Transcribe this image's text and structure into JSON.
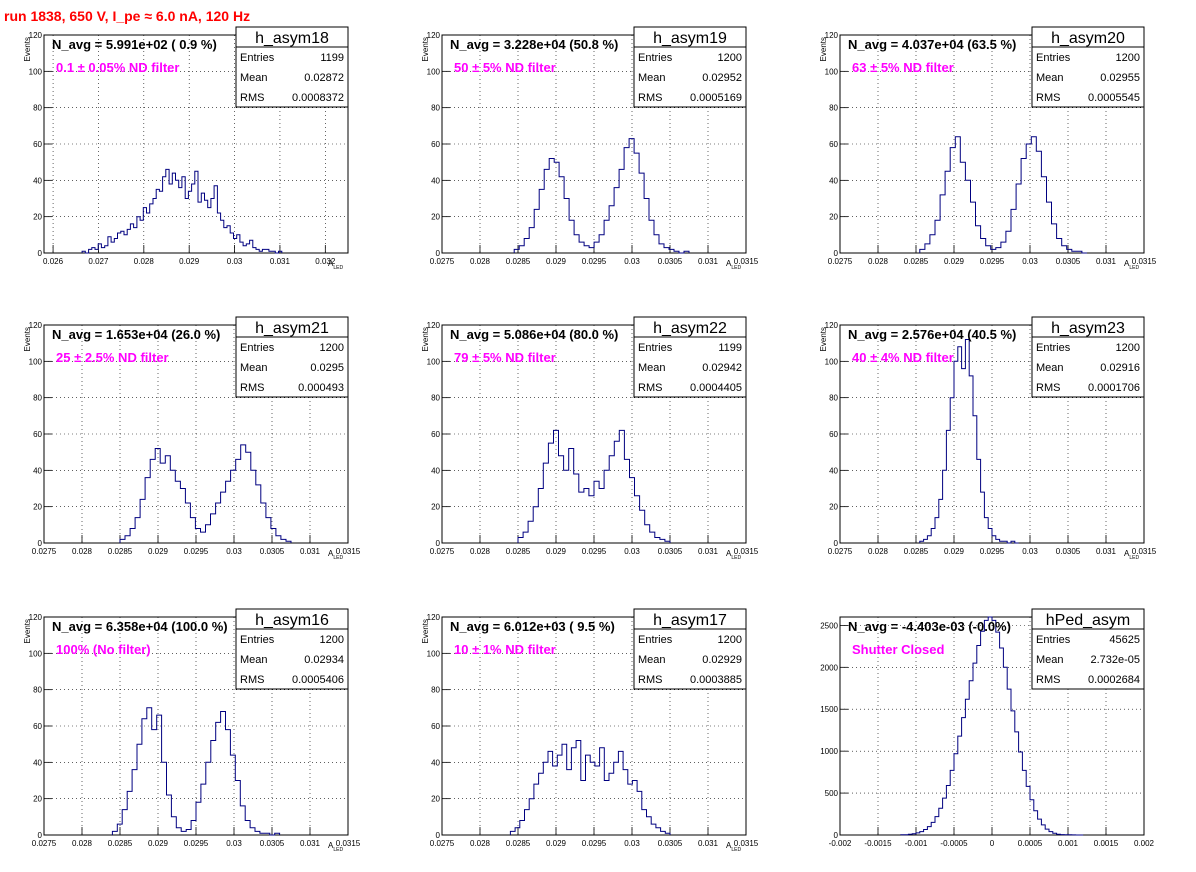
{
  "page": {
    "title": "run 1838,   650 V, I_pe ≈ 6.0 nA, 120 Hz"
  },
  "colors": {
    "histogram": "#000080",
    "annotation": "#ff00ff",
    "title": "#ff0000",
    "axis": "#000000"
  },
  "chart_data": [
    {
      "type": "bar",
      "name": "h_asym18",
      "nAvg": "N_avg = 5.991e+02 ( 0.9 %)",
      "annotation": "0.1 ± 0.05% ND filter",
      "stats": {
        "entries": "1199",
        "mean": "0.02872",
        "rms": "0.0008372"
      },
      "xlabel": "A",
      "xlabel_sub": "LED",
      "ylabel": "Events",
      "xlim": [
        0.0258,
        0.0325
      ],
      "ylim": [
        0,
        120
      ],
      "xticks": [
        0.026,
        0.027,
        0.028,
        0.029,
        0.03,
        0.031,
        0.032
      ],
      "xtick_labels": [
        "0.026",
        "0.027",
        "0.028",
        "0.029",
        "0.03",
        "0.031",
        "0.032"
      ],
      "yticks": [
        0,
        20,
        40,
        60,
        80,
        100,
        120
      ],
      "bin_edges": [
        0.02664,
        0.03104
      ],
      "values": [
        1,
        0,
        2,
        3,
        2,
        5,
        3,
        4,
        9,
        6,
        8,
        11,
        12,
        10,
        13,
        16,
        14,
        20,
        18,
        25,
        22,
        27,
        30,
        35,
        34,
        42,
        46,
        38,
        44,
        40,
        36,
        42,
        30,
        34,
        38,
        45,
        28,
        33,
        29,
        25,
        30,
        37,
        22,
        18,
        14,
        15,
        11,
        8,
        10,
        6,
        4,
        5,
        7,
        3,
        2,
        1,
        2,
        2,
        1,
        1,
        0,
        1
      ]
    },
    {
      "type": "bar",
      "name": "h_asym19",
      "nAvg": "N_avg = 3.228e+04 (50.8 %)",
      "annotation": "50 ± 5% ND filter",
      "stats": {
        "entries": "1200",
        "mean": "0.02952",
        "rms": "0.0005169"
      },
      "xlabel": "A",
      "xlabel_sub": "LED",
      "ylabel": "Events",
      "xlim": [
        0.0275,
        0.0315
      ],
      "ylim": [
        0,
        120
      ],
      "xticks": [
        0.0275,
        0.028,
        0.0285,
        0.029,
        0.0295,
        0.03,
        0.0305,
        0.031,
        0.0315
      ],
      "xtick_labels": [
        "0.0275",
        "0.028",
        "0.0285",
        "0.029",
        "0.0295",
        "0.03",
        "0.0305",
        "0.031",
        "0.0315"
      ],
      "yticks": [
        0,
        20,
        40,
        60,
        80,
        100,
        120
      ],
      "bin_edges": [
        0.02845,
        0.03075
      ],
      "values": [
        2,
        4,
        8,
        14,
        24,
        35,
        46,
        52,
        50,
        42,
        30,
        18,
        10,
        6,
        4,
        3,
        6,
        10,
        18,
        26,
        36,
        46,
        58,
        63,
        55,
        44,
        30,
        18,
        10,
        5,
        3,
        2,
        1,
        0,
        1
      ]
    },
    {
      "type": "bar",
      "name": "h_asym20",
      "nAvg": "N_avg = 4.037e+04 (63.5 %)",
      "annotation": "63 ± 5% ND filter",
      "stats": {
        "entries": "1200",
        "mean": "0.02955",
        "rms": "0.0005545"
      },
      "xlabel": "A",
      "xlabel_sub": "LED",
      "ylabel": "Events",
      "xlim": [
        0.0275,
        0.0315
      ],
      "ylim": [
        0,
        120
      ],
      "xticks": [
        0.0275,
        0.028,
        0.0285,
        0.029,
        0.0295,
        0.03,
        0.0305,
        0.031,
        0.0315
      ],
      "xtick_labels": [
        "0.0275",
        "0.028",
        "0.0285",
        "0.029",
        "0.0295",
        "0.03",
        "0.0305",
        "0.031",
        "0.0315"
      ],
      "yticks": [
        0,
        20,
        40,
        60,
        80,
        100,
        120
      ],
      "bin_edges": [
        0.02855,
        0.03075
      ],
      "values": [
        2,
        5,
        10,
        18,
        32,
        45,
        58,
        64,
        50,
        40,
        28,
        15,
        8,
        4,
        2,
        3,
        6,
        12,
        24,
        38,
        52,
        60,
        64,
        56,
        42,
        28,
        16,
        8,
        4,
        2,
        1,
        1,
        0
      ]
    },
    {
      "type": "bar",
      "name": "h_asym21",
      "nAvg": "N_avg = 1.653e+04 (26.0 %)",
      "annotation": "25 ± 2.5% ND filter",
      "stats": {
        "entries": "1200",
        "mean": "0.0295",
        "rms": "0.000493"
      },
      "xlabel": "A",
      "xlabel_sub": "LED",
      "ylabel": "Events",
      "xlim": [
        0.0275,
        0.0315
      ],
      "ylim": [
        0,
        120
      ],
      "xticks": [
        0.0275,
        0.028,
        0.0285,
        0.029,
        0.0295,
        0.03,
        0.0305,
        0.031,
        0.0315
      ],
      "xtick_labels": [
        "0.0275",
        "0.028",
        "0.0285",
        "0.029",
        "0.0295",
        "0.03",
        "0.0305",
        "0.031",
        "0.0315"
      ],
      "yticks": [
        0,
        20,
        40,
        60,
        80,
        100,
        120
      ],
      "bin_edges": [
        0.0285,
        0.03075
      ],
      "values": [
        2,
        4,
        8,
        14,
        24,
        36,
        46,
        52,
        44,
        48,
        40,
        34,
        30,
        22,
        14,
        8,
        6,
        10,
        16,
        22,
        28,
        34,
        40,
        46,
        54,
        50,
        40,
        32,
        22,
        14,
        8,
        4,
        2,
        1
      ]
    },
    {
      "type": "bar",
      "name": "h_asym22",
      "nAvg": "N_avg = 5.086e+04 (80.0 %)",
      "annotation": "79 ± 5% ND filter",
      "stats": {
        "entries": "1199",
        "mean": "0.02942",
        "rms": "0.0004405"
      },
      "xlabel": "A",
      "xlabel_sub": "LED",
      "ylabel": "Events",
      "xlim": [
        0.0275,
        0.0315
      ],
      "ylim": [
        0,
        120
      ],
      "xticks": [
        0.0275,
        0.028,
        0.0285,
        0.029,
        0.0295,
        0.03,
        0.0305,
        0.031,
        0.0315
      ],
      "xtick_labels": [
        "0.0275",
        "0.028",
        "0.0285",
        "0.029",
        "0.0295",
        "0.03",
        "0.0305",
        "0.031",
        "0.0315"
      ],
      "yticks": [
        0,
        20,
        40,
        60,
        80,
        100,
        120
      ],
      "bin_edges": [
        0.0285,
        0.0305
      ],
      "values": [
        3,
        6,
        12,
        20,
        30,
        44,
        55,
        62,
        48,
        40,
        52,
        38,
        28,
        30,
        26,
        34,
        30,
        40,
        48,
        56,
        62,
        46,
        36,
        26,
        18,
        10,
        6,
        3,
        2,
        1
      ]
    },
    {
      "type": "bar",
      "name": "h_asym23",
      "nAvg": "N_avg = 2.576e+04 (40.5 %)",
      "annotation": "40 ± 4% ND filter",
      "stats": {
        "entries": "1200",
        "mean": "0.02916",
        "rms": "0.0001706"
      },
      "xlabel": "A",
      "xlabel_sub": "LED",
      "ylabel": "Events",
      "xlim": [
        0.0275,
        0.0315
      ],
      "ylim": [
        0,
        120
      ],
      "xticks": [
        0.0275,
        0.028,
        0.0285,
        0.029,
        0.0295,
        0.03,
        0.0305,
        0.031,
        0.0315
      ],
      "xtick_labels": [
        "0.0275",
        "0.028",
        "0.0285",
        "0.029",
        "0.0295",
        "0.03",
        "0.0305",
        "0.031",
        "0.0315"
      ],
      "yticks": [
        0,
        20,
        40,
        60,
        80,
        100,
        120
      ],
      "bin_edges": [
        0.02855,
        0.02985
      ],
      "values": [
        1,
        2,
        4,
        8,
        14,
        24,
        40,
        62,
        80,
        100,
        108,
        96,
        112,
        92,
        70,
        46,
        28,
        14,
        8,
        4,
        2,
        1,
        1,
        0,
        1,
        0
      ]
    },
    {
      "type": "bar",
      "name": "h_asym16",
      "nAvg": "N_avg = 6.358e+04 (100.0 %)",
      "annotation": "100% (No filter)",
      "stats": {
        "entries": "1200",
        "mean": "0.02934",
        "rms": "0.0005406"
      },
      "xlabel": "A",
      "xlabel_sub": "LED",
      "ylabel": "Events",
      "xlim": [
        0.0275,
        0.0315
      ],
      "ylim": [
        0,
        120
      ],
      "xticks": [
        0.0275,
        0.028,
        0.0285,
        0.029,
        0.0295,
        0.03,
        0.0305,
        0.031,
        0.0315
      ],
      "xtick_labels": [
        "0.0275",
        "0.028",
        "0.0285",
        "0.029",
        "0.0295",
        "0.03",
        "0.0305",
        "0.031",
        "0.0315"
      ],
      "yticks": [
        0,
        20,
        40,
        60,
        80,
        100,
        120
      ],
      "bin_edges": [
        0.0284,
        0.0306
      ],
      "values": [
        2,
        6,
        14,
        24,
        36,
        50,
        64,
        70,
        58,
        66,
        40,
        22,
        10,
        4,
        2,
        3,
        8,
        18,
        28,
        40,
        52,
        62,
        68,
        58,
        44,
        30,
        16,
        8,
        4,
        2,
        1,
        1,
        0,
        1
      ]
    },
    {
      "type": "bar",
      "name": "h_asym17",
      "nAvg": "N_avg = 6.012e+03 ( 9.5 %)",
      "annotation": "10 ± 1% ND filter",
      "stats": {
        "entries": "1200",
        "mean": "0.02929",
        "rms": "0.0003885"
      },
      "xlabel": "A",
      "xlabel_sub": "LED",
      "ylabel": "Events",
      "xlim": [
        0.0275,
        0.0315
      ],
      "ylim": [
        0,
        120
      ],
      "xticks": [
        0.0275,
        0.028,
        0.0285,
        0.029,
        0.0295,
        0.03,
        0.0305,
        0.031,
        0.0315
      ],
      "xtick_labels": [
        "0.0275",
        "0.028",
        "0.0285",
        "0.029",
        "0.0295",
        "0.03",
        "0.0305",
        "0.031",
        "0.0315"
      ],
      "yticks": [
        0,
        20,
        40,
        60,
        80,
        100,
        120
      ],
      "bin_edges": [
        0.0284,
        0.0305
      ],
      "values": [
        2,
        4,
        8,
        14,
        20,
        28,
        34,
        40,
        46,
        38,
        44,
        50,
        36,
        48,
        52,
        30,
        44,
        40,
        38,
        48,
        30,
        34,
        40,
        46,
        36,
        28,
        30,
        24,
        14,
        10,
        6,
        4,
        2,
        1
      ]
    },
    {
      "type": "bar",
      "name": "hPed_asym",
      "nAvg": "N_avg = -4.403e-03 (-0.0%)",
      "annotation": "Shutter Closed",
      "stats": {
        "entries": "45625",
        "mean": "2.732e-05",
        "rms": "0.0002684"
      },
      "xlabel": "",
      "xlabel_sub": "",
      "ylabel": "",
      "xlim": [
        -0.002,
        0.002
      ],
      "ylim": [
        0,
        2600
      ],
      "xticks": [
        -0.002,
        -0.0015,
        -0.001,
        -0.0005,
        0,
        0.0005,
        0.001,
        0.0015,
        0.002
      ],
      "xtick_labels": [
        "-0.002",
        "-0.0015",
        "-0.001",
        "-0.0005",
        "0",
        "0.0005",
        "0.001",
        "0.0015",
        "0.002"
      ],
      "yticks": [
        0,
        500,
        1000,
        1500,
        2000,
        2500
      ],
      "bin_edges": [
        -0.0012,
        0.0012
      ],
      "values": [
        2,
        4,
        8,
        15,
        25,
        40,
        65,
        100,
        150,
        220,
        320,
        440,
        590,
        770,
        970,
        1180,
        1400,
        1620,
        1840,
        2050,
        2260,
        2430,
        2560,
        2600,
        2560,
        2420,
        2230,
        2000,
        1740,
        1480,
        1230,
        990,
        770,
        580,
        420,
        290,
        190,
        120,
        70,
        40,
        20,
        10,
        5,
        3,
        2,
        1,
        0,
        0
      ]
    }
  ]
}
